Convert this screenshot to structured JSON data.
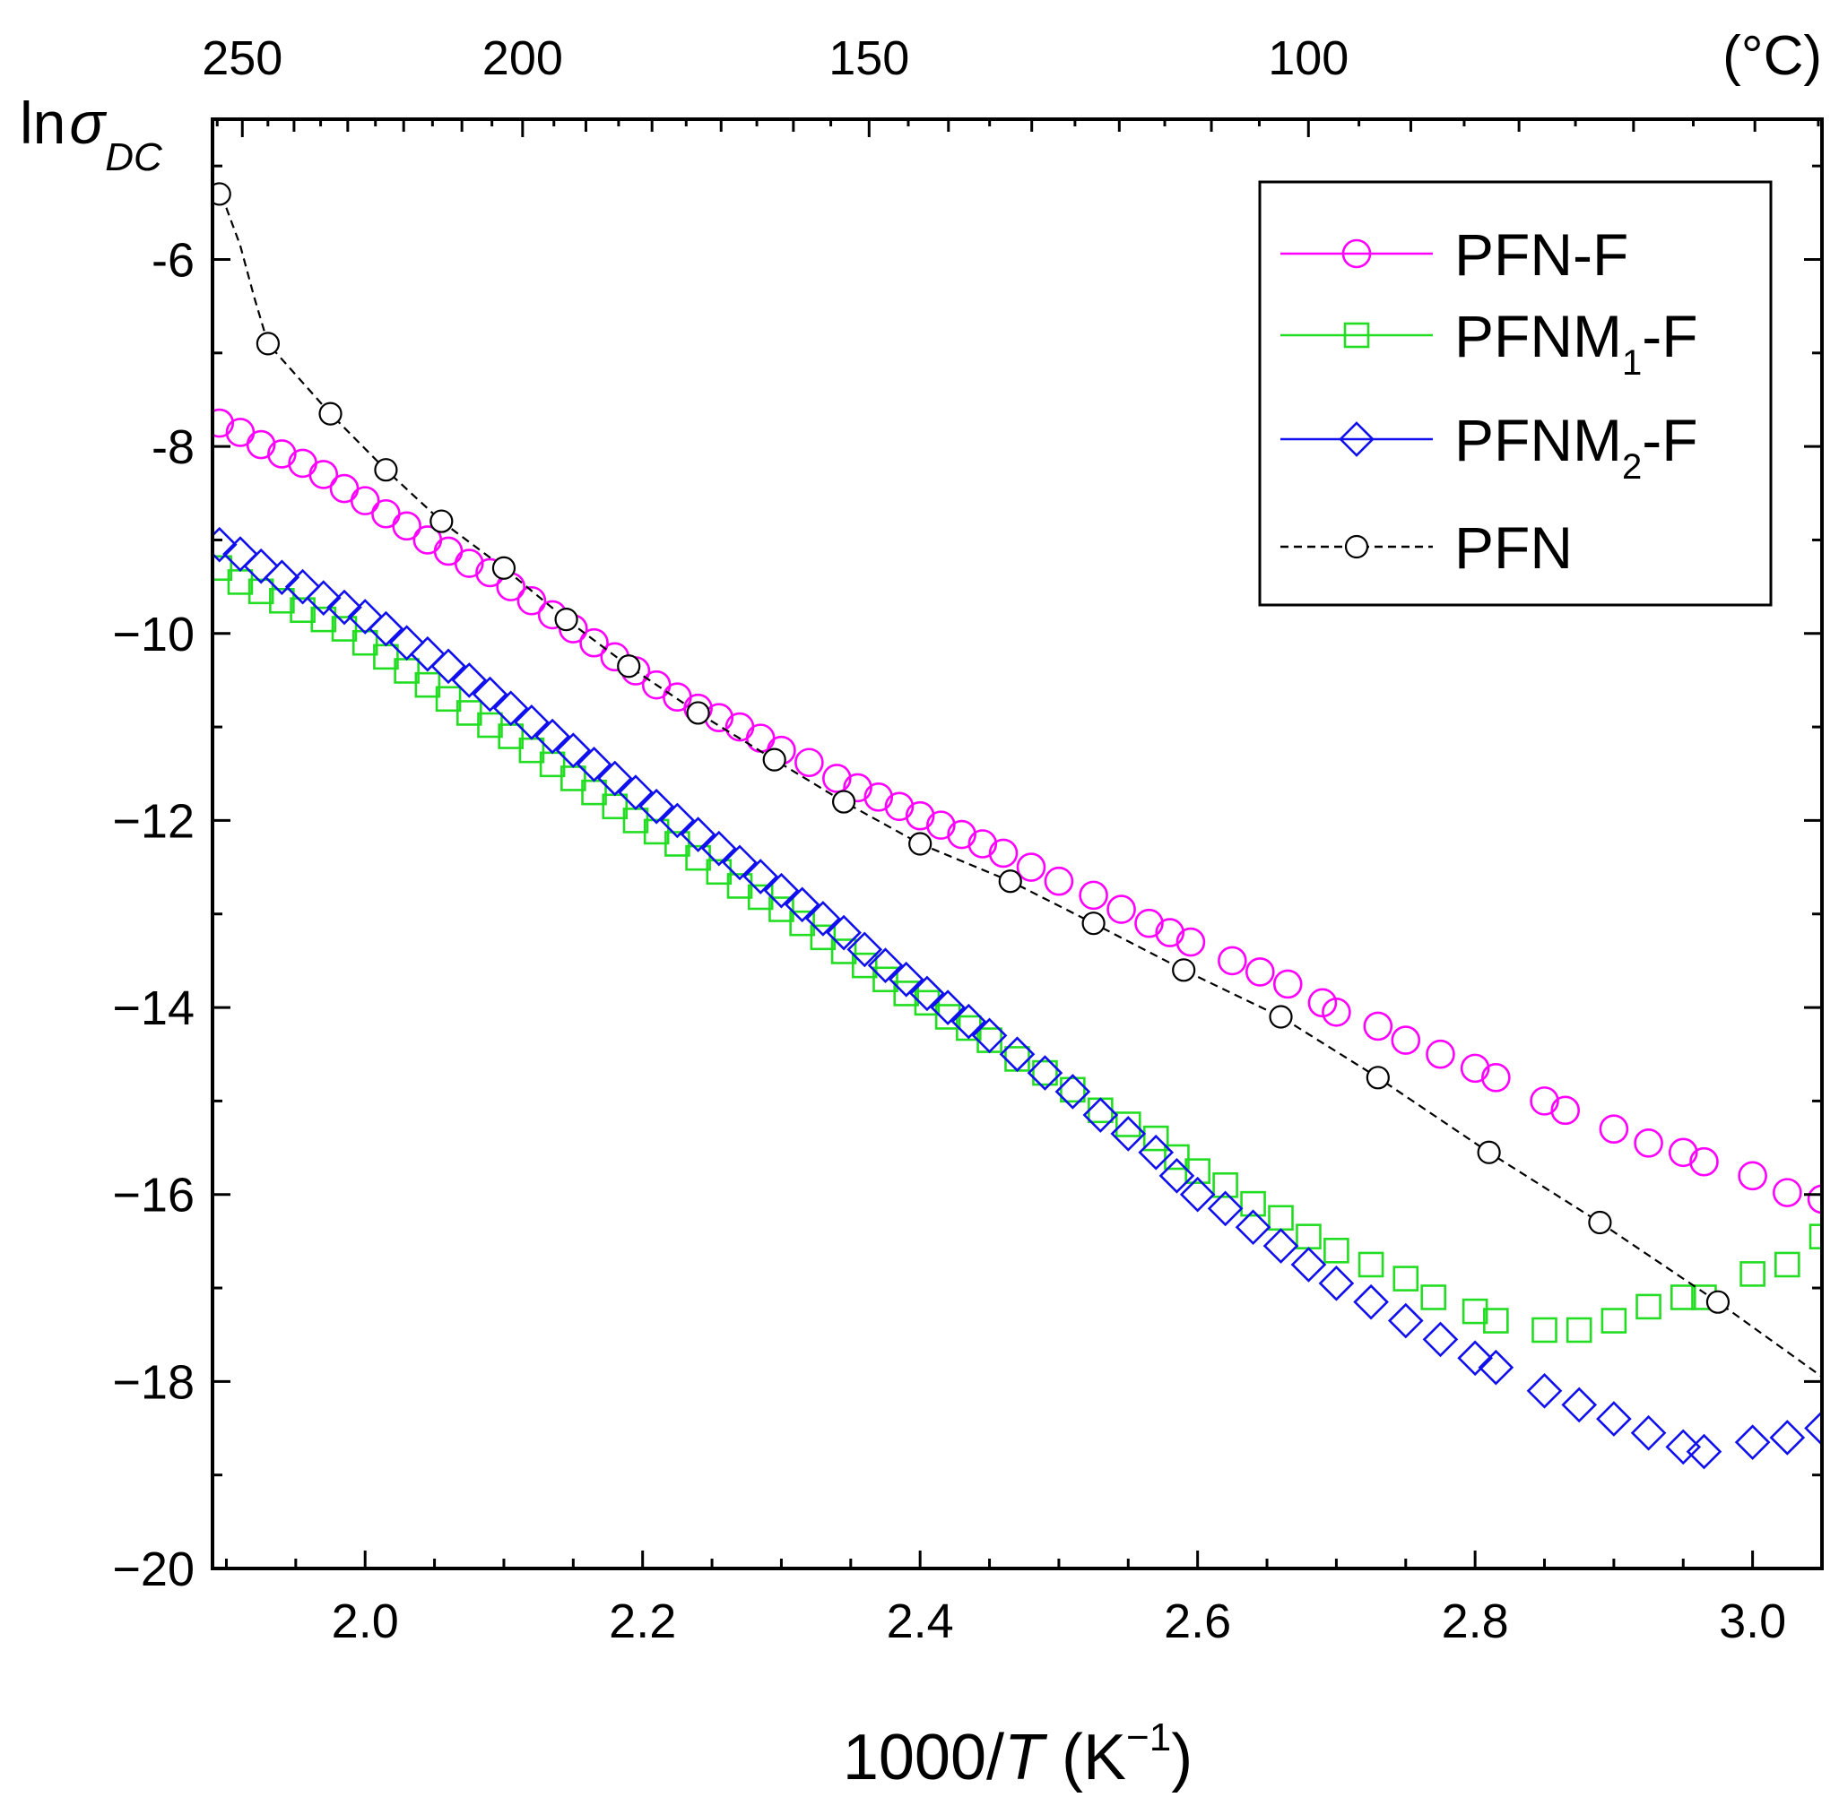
{
  "chart_data": {
    "type": "scatter",
    "title": "",
    "xlabel": "1000/T (K⁻¹)",
    "xlabel_parts": {
      "prefix": "1000/",
      "var": "T",
      "unit_open": " (K",
      "unit_sup": "−1",
      "unit_close": ")"
    },
    "ylabel": "lnσDC",
    "ylabel_parts": {
      "ln": "ln",
      "sigma": "σ",
      "sub": "DC"
    },
    "xlim": [
      1.89,
      3.05
    ],
    "ylim": [
      -20,
      -4.5
    ],
    "x_ticks": [
      2.0,
      2.2,
      2.4,
      2.6,
      2.8,
      3.0
    ],
    "x_tick_labels": [
      "2.0",
      "2.2",
      "2.4",
      "2.6",
      "2.8",
      "3.0"
    ],
    "y_ticks": [
      -6,
      -8,
      -10,
      -12,
      -14,
      -16,
      -18,
      -20
    ],
    "y_tick_labels": [
      "-6",
      "-8",
      "−10",
      "−12",
      "−14",
      "−16",
      "−18",
      "−20"
    ],
    "top_axis": {
      "unit_label": "(°C)",
      "ticks_celsius": [
        250,
        200,
        150,
        100
      ],
      "tick_labels": [
        "250",
        "200",
        "150",
        "100"
      ]
    },
    "grid": false,
    "legend_position": "top-right",
    "series": [
      {
        "name": "PFN-F",
        "label_main": "PFN-F",
        "color": "#ff00ff",
        "marker": "circle",
        "line": "solid",
        "x": [
          1.895,
          1.91,
          1.925,
          1.94,
          1.955,
          1.97,
          1.985,
          2.0,
          2.015,
          2.03,
          2.045,
          2.06,
          2.075,
          2.09,
          2.105,
          2.12,
          2.135,
          2.15,
          2.165,
          2.18,
          2.195,
          2.21,
          2.225,
          2.24,
          2.255,
          2.27,
          2.285,
          2.3,
          2.32,
          2.34,
          2.355,
          2.37,
          2.385,
          2.4,
          2.415,
          2.43,
          2.445,
          2.46,
          2.48,
          2.5,
          2.525,
          2.545,
          2.565,
          2.58,
          2.595,
          2.625,
          2.645,
          2.665,
          2.69,
          2.7,
          2.73,
          2.75,
          2.775,
          2.8,
          2.815,
          2.85,
          2.865,
          2.9,
          2.925,
          2.95,
          2.965,
          3.0,
          3.025,
          3.05
        ],
        "y": [
          -7.75,
          -7.85,
          -7.98,
          -8.08,
          -8.18,
          -8.3,
          -8.45,
          -8.58,
          -8.72,
          -8.85,
          -9.0,
          -9.12,
          -9.25,
          -9.35,
          -9.5,
          -9.65,
          -9.8,
          -9.95,
          -10.1,
          -10.25,
          -10.4,
          -10.55,
          -10.68,
          -10.8,
          -10.9,
          -11.0,
          -11.12,
          -11.25,
          -11.38,
          -11.55,
          -11.65,
          -11.75,
          -11.85,
          -11.95,
          -12.05,
          -12.15,
          -12.25,
          -12.35,
          -12.5,
          -12.65,
          -12.8,
          -12.95,
          -13.1,
          -13.2,
          -13.3,
          -13.5,
          -13.62,
          -13.75,
          -13.95,
          -14.05,
          -14.2,
          -14.35,
          -14.5,
          -14.65,
          -14.75,
          -15.0,
          -15.1,
          -15.3,
          -15.45,
          -15.55,
          -15.65,
          -15.8,
          -15.98,
          -16.05
        ]
      },
      {
        "name": "PFNM1-F",
        "label_main": "PFNM",
        "label_sub": "1",
        "label_tail": "-F",
        "color": "#22dd22",
        "marker": "square",
        "line": "solid",
        "x": [
          1.895,
          1.91,
          1.925,
          1.94,
          1.955,
          1.97,
          1.985,
          2.0,
          2.015,
          2.03,
          2.045,
          2.06,
          2.075,
          2.09,
          2.105,
          2.12,
          2.135,
          2.15,
          2.165,
          2.18,
          2.195,
          2.21,
          2.225,
          2.24,
          2.255,
          2.27,
          2.285,
          2.3,
          2.315,
          2.33,
          2.345,
          2.36,
          2.375,
          2.39,
          2.405,
          2.42,
          2.435,
          2.45,
          2.47,
          2.49,
          2.51,
          2.53,
          2.55,
          2.57,
          2.585,
          2.6,
          2.62,
          2.64,
          2.66,
          2.68,
          2.7,
          2.725,
          2.75,
          2.77,
          2.8,
          2.815,
          2.85,
          2.875,
          2.9,
          2.925,
          2.95,
          2.965,
          3.0,
          3.025,
          3.05
        ],
        "y": [
          -9.3,
          -9.45,
          -9.55,
          -9.65,
          -9.75,
          -9.85,
          -9.95,
          -10.1,
          -10.25,
          -10.4,
          -10.55,
          -10.7,
          -10.85,
          -10.98,
          -11.1,
          -11.25,
          -11.4,
          -11.55,
          -11.7,
          -11.85,
          -12.0,
          -12.12,
          -12.25,
          -12.4,
          -12.55,
          -12.7,
          -12.82,
          -12.95,
          -13.1,
          -13.25,
          -13.4,
          -13.55,
          -13.7,
          -13.85,
          -13.95,
          -14.1,
          -14.22,
          -14.35,
          -14.55,
          -14.7,
          -14.88,
          -15.1,
          -15.25,
          -15.4,
          -15.6,
          -15.75,
          -15.9,
          -16.1,
          -16.25,
          -16.45,
          -16.6,
          -16.75,
          -16.9,
          -17.1,
          -17.25,
          -17.35,
          -17.45,
          -17.45,
          -17.35,
          -17.2,
          -17.1,
          -17.1,
          -16.85,
          -16.75,
          -16.45
        ]
      },
      {
        "name": "PFNM2-F",
        "label_main": "PFNM",
        "label_sub": "2",
        "label_tail": "-F",
        "color": "#1010ee",
        "marker": "diamond",
        "line": "solid",
        "x": [
          1.895,
          1.91,
          1.925,
          1.94,
          1.955,
          1.97,
          1.985,
          2.0,
          2.015,
          2.03,
          2.045,
          2.06,
          2.075,
          2.09,
          2.105,
          2.12,
          2.135,
          2.15,
          2.165,
          2.18,
          2.195,
          2.21,
          2.225,
          2.24,
          2.255,
          2.27,
          2.285,
          2.3,
          2.315,
          2.33,
          2.345,
          2.36,
          2.375,
          2.39,
          2.405,
          2.42,
          2.435,
          2.45,
          2.47,
          2.49,
          2.51,
          2.53,
          2.55,
          2.57,
          2.585,
          2.6,
          2.62,
          2.64,
          2.66,
          2.68,
          2.7,
          2.725,
          2.75,
          2.775,
          2.8,
          2.815,
          2.85,
          2.875,
          2.9,
          2.925,
          2.95,
          2.965,
          3.0,
          3.025,
          3.05
        ],
        "y": [
          -9.05,
          -9.15,
          -9.28,
          -9.4,
          -9.5,
          -9.62,
          -9.72,
          -9.82,
          -9.95,
          -10.1,
          -10.22,
          -10.35,
          -10.5,
          -10.65,
          -10.8,
          -10.95,
          -11.1,
          -11.25,
          -11.4,
          -11.55,
          -11.7,
          -11.85,
          -12.0,
          -12.15,
          -12.3,
          -12.45,
          -12.6,
          -12.75,
          -12.9,
          -13.05,
          -13.2,
          -13.38,
          -13.55,
          -13.7,
          -13.85,
          -14.0,
          -14.15,
          -14.3,
          -14.5,
          -14.7,
          -14.9,
          -15.15,
          -15.35,
          -15.55,
          -15.8,
          -16.0,
          -16.15,
          -16.35,
          -16.55,
          -16.75,
          -16.95,
          -17.15,
          -17.35,
          -17.55,
          -17.75,
          -17.85,
          -18.1,
          -18.25,
          -18.4,
          -18.55,
          -18.7,
          -18.75,
          -18.65,
          -18.6,
          -18.5
        ]
      },
      {
        "name": "PFN",
        "label_main": "PFN",
        "color": "#000000",
        "marker": "circle-small",
        "line": "dashed",
        "x": [
          1.895,
          1.93,
          1.975,
          2.015,
          2.055,
          2.1,
          2.145,
          2.19,
          2.24,
          2.295,
          2.345,
          2.4,
          2.465,
          2.525,
          2.59,
          2.66,
          2.73,
          2.81,
          2.89,
          2.975
        ],
        "y": [
          -5.3,
          -6.9,
          -7.65,
          -8.25,
          -8.8,
          -9.3,
          -9.85,
          -10.35,
          -10.85,
          -11.35,
          -11.8,
          -12.25,
          -12.65,
          -13.1,
          -13.6,
          -14.1,
          -14.75,
          -15.55,
          -16.3,
          -17.15
        ],
        "curve_x": [
          1.89,
          1.9,
          1.91,
          1.92,
          1.93,
          1.975,
          2.015,
          2.055,
          2.1,
          2.145,
          2.19,
          2.24,
          2.295,
          2.345,
          2.4,
          2.465,
          2.525,
          2.59,
          2.66,
          2.73,
          2.81,
          2.89,
          2.975,
          3.05
        ],
        "curve_y": [
          -5.2,
          -5.45,
          -5.85,
          -6.4,
          -6.9,
          -7.65,
          -8.25,
          -8.8,
          -9.3,
          -9.85,
          -10.35,
          -10.85,
          -11.35,
          -11.8,
          -12.25,
          -12.65,
          -13.1,
          -13.6,
          -14.1,
          -14.75,
          -15.55,
          -16.3,
          -17.15,
          -17.95
        ]
      }
    ]
  }
}
